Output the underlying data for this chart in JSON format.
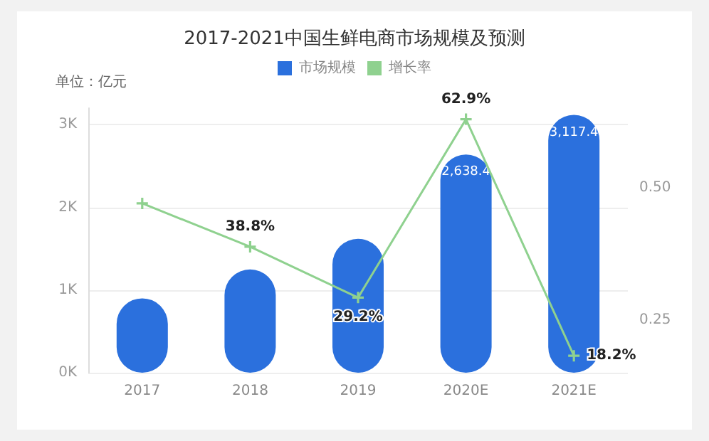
{
  "chart_data": {
    "type": "bar",
    "title": "2017-2021中国生鲜电商市场规模及预测",
    "ylabel": "单位：亿元",
    "categories": [
      "2017",
      "2018",
      "2019",
      "2020E",
      "2021E"
    ],
    "series": [
      {
        "name": "市场规模",
        "color": "#2b70dd",
        "values": [
          900,
          1250,
          1620,
          2638.4,
          3117.4
        ],
        "value_labels": [
          null,
          null,
          null,
          "2,638.4",
          "3,117.4"
        ]
      },
      {
        "name": "增长率",
        "type": "line",
        "axis": "y2",
        "color": "#8fd18f",
        "values": [
          0.47,
          0.388,
          0.292,
          0.629,
          0.182
        ],
        "value_labels": [
          null,
          "38.8%",
          "29.2%",
          "62.9%",
          "18.2%"
        ]
      }
    ],
    "ylim": [
      0,
      3200
    ],
    "yticks": [
      {
        "value": 0,
        "label": "0K"
      },
      {
        "value": 1000,
        "label": "1K"
      },
      {
        "value": 2000,
        "label": "2K"
      },
      {
        "value": 3000,
        "label": "3K"
      }
    ],
    "y2lim": [
      0.15,
      0.65
    ],
    "y2ticks": [
      {
        "value": 0.25,
        "label": "0.25"
      },
      {
        "value": 0.5,
        "label": "0.50"
      }
    ],
    "grid": "y",
    "legend": "top",
    "marker": "cross",
    "line_style": "solid"
  }
}
